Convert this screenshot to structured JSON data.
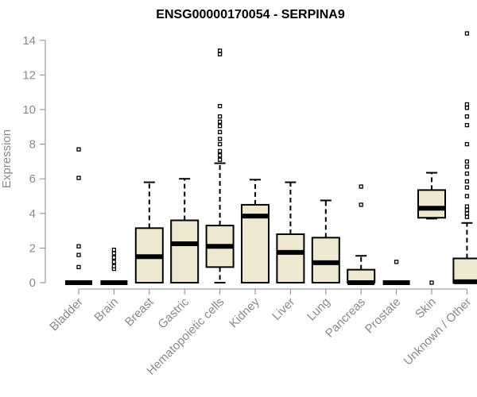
{
  "chart_data": {
    "type": "boxplot",
    "title": "ENSG00000170054 - SERPINA9",
    "xlabel": "",
    "ylabel": "Expression",
    "ylim": [
      0,
      14.5
    ],
    "yticks": [
      0,
      2,
      4,
      6,
      8,
      10,
      12,
      14
    ],
    "box_color": "#efe8d0",
    "categories": [
      "Bladder",
      "Brain",
      "Breast",
      "Gastric",
      "Hematopoietic cells",
      "Kidney",
      "Liver",
      "Lung",
      "Pancreas",
      "Prostate",
      "Skin",
      "Unknown / Other"
    ],
    "boxes": [
      {
        "q1": 0,
        "median": 0,
        "q3": 0,
        "lower": 0,
        "upper": 0,
        "outliers": [
          0.9,
          1.6,
          2.1,
          6.05,
          7.7
        ]
      },
      {
        "q1": 0,
        "median": 0,
        "q3": 0,
        "lower": 0,
        "upper": 0,
        "outliers": [
          0.8,
          0.95,
          1.2,
          1.45,
          1.7,
          1.9
        ]
      },
      {
        "q1": 0,
        "median": 1.5,
        "q3": 3.15,
        "lower": 0,
        "upper": 5.8,
        "outliers": []
      },
      {
        "q1": 0,
        "median": 2.25,
        "q3": 3.6,
        "lower": 0,
        "upper": 6.0,
        "outliers": []
      },
      {
        "q1": 0.9,
        "median": 2.1,
        "q3": 3.3,
        "lower": 0,
        "upper": 6.9,
        "outliers": [
          7.1,
          7.35,
          7.6,
          8.0,
          8.3,
          8.7,
          9.05,
          9.3,
          9.6,
          10.2,
          13.2,
          13.4
        ]
      },
      {
        "q1": 0,
        "median": 3.85,
        "q3": 4.5,
        "lower": 0,
        "upper": 5.95,
        "outliers": []
      },
      {
        "q1": 0,
        "median": 1.75,
        "q3": 2.8,
        "lower": 0,
        "upper": 5.8,
        "outliers": []
      },
      {
        "q1": 0,
        "median": 1.15,
        "q3": 2.6,
        "lower": 0,
        "upper": 4.75,
        "outliers": []
      },
      {
        "q1": 0,
        "median": 0,
        "q3": 0.75,
        "lower": 0,
        "upper": 1.55,
        "outliers": [
          4.5,
          5.55
        ]
      },
      {
        "q1": 0,
        "median": 0,
        "q3": 0,
        "lower": 0,
        "upper": 0,
        "outliers": [
          1.2
        ]
      },
      {
        "q1": 3.75,
        "median": 4.3,
        "q3": 5.35,
        "lower": 3.7,
        "upper": 6.35,
        "outliers": [
          0
        ]
      },
      {
        "q1": 0,
        "median": 0.05,
        "q3": 1.4,
        "lower": 0,
        "upper": 3.45,
        "outliers": [
          3.8,
          4.0,
          4.2,
          4.4,
          5.0,
          5.5,
          5.85,
          6.3,
          6.7,
          7.0,
          8.0,
          9.1,
          9.6,
          10.1,
          10.3,
          14.4
        ]
      }
    ]
  }
}
